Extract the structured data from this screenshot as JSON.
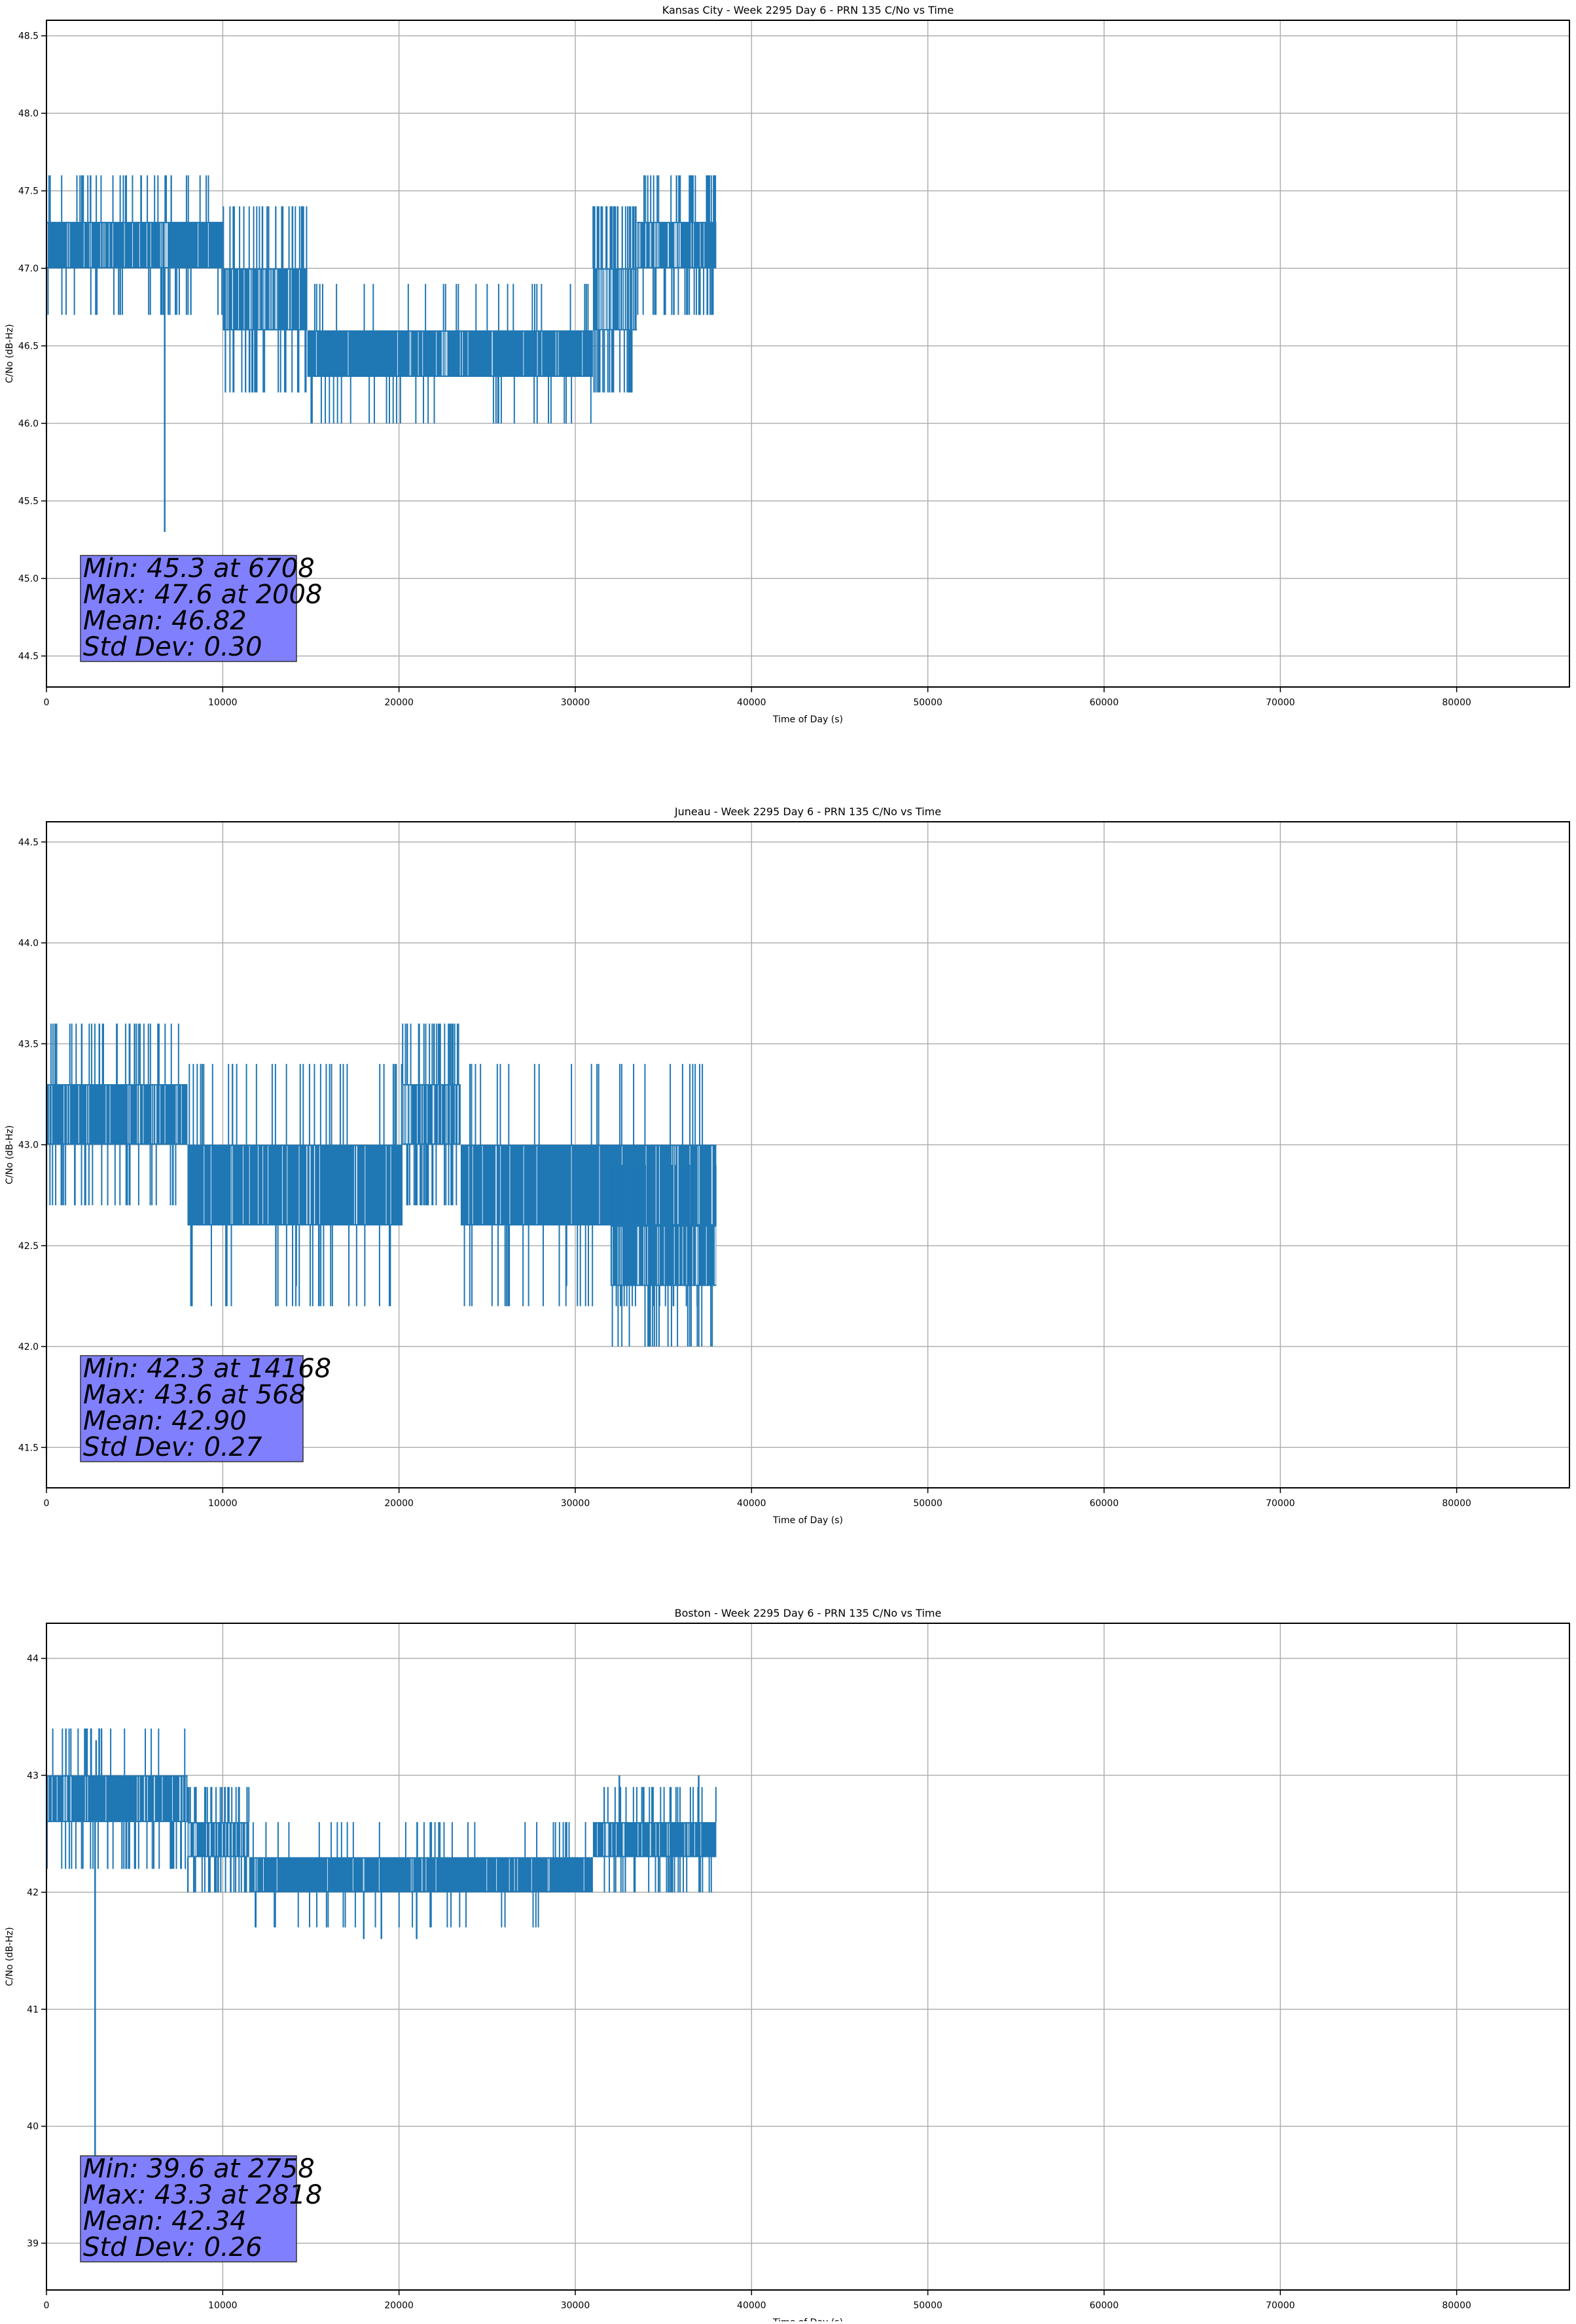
{
  "chart_data": [
    {
      "type": "line",
      "title": "Kansas City - Week 2295 Day 6 - PRN 135 C/No vs Time",
      "xlabel": "Time of Day (s)",
      "ylabel": "C/No (dB-Hz)",
      "xlim": [
        0,
        86400
      ],
      "ylim": [
        44.3,
        48.6
      ],
      "x_ticks": [
        0,
        10000,
        20000,
        30000,
        40000,
        50000,
        60000,
        70000,
        80000
      ],
      "x_tick_labels": [
        "0",
        "10000",
        "20000",
        "30000",
        "40000",
        "50000",
        "60000",
        "70000",
        "80000"
      ],
      "y_ticks": [
        44.5,
        45.0,
        45.5,
        46.0,
        46.5,
        47.0,
        47.5,
        48.0,
        48.5
      ],
      "y_tick_labels": [
        "44.5",
        "45.0",
        "45.5",
        "46.0",
        "46.5",
        "47.0",
        "47.5",
        "48.0",
        "48.5"
      ],
      "grid": true,
      "series_color": "#1f77b4",
      "data_end": 38000,
      "segments": [
        {
          "x0": 0,
          "x1": 10000,
          "y_low": 47.0,
          "y_high": 47.3
        },
        {
          "x0": 10000,
          "x1": 14800,
          "y_low": 46.6,
          "y_high": 47.0
        },
        {
          "x0": 14800,
          "x1": 31000,
          "y_low": 46.3,
          "y_high": 46.6
        },
        {
          "x0": 31000,
          "x1": 33500,
          "y_low": 46.6,
          "y_high": 47.0
        },
        {
          "x0": 33500,
          "x1": 38000,
          "y_low": 47.0,
          "y_high": 47.3
        }
      ],
      "spikes": [
        {
          "x": 2008,
          "y": 47.6
        },
        {
          "x": 2500,
          "y": 47.6
        },
        {
          "x": 6708,
          "y": 45.3
        },
        {
          "x": 36500,
          "y": 47.6
        },
        {
          "x": 37500,
          "y": 47.6
        }
      ],
      "stats": {
        "min_label": "Min: 45.3 at 6708",
        "max_label": "Max: 47.6 at 2008",
        "mean_label": "Mean: 46.82",
        "std_label": "Std Dev: 0.30"
      },
      "stats_box_color": "#8080ff"
    },
    {
      "type": "line",
      "title": "Juneau - Week 2295 Day 6 - PRN 135 C/No vs Time",
      "xlabel": "Time of Day (s)",
      "ylabel": "C/No (dB-Hz)",
      "xlim": [
        0,
        86400
      ],
      "ylim": [
        41.3,
        44.6
      ],
      "x_ticks": [
        0,
        10000,
        20000,
        30000,
        40000,
        50000,
        60000,
        70000,
        80000
      ],
      "x_tick_labels": [
        "0",
        "10000",
        "20000",
        "30000",
        "40000",
        "50000",
        "60000",
        "70000",
        "80000"
      ],
      "y_ticks": [
        41.5,
        42.0,
        42.5,
        43.0,
        43.5,
        44.0,
        44.5
      ],
      "y_tick_labels": [
        "41.5",
        "42.0",
        "42.5",
        "43.0",
        "43.5",
        "44.0",
        "44.5"
      ],
      "grid": true,
      "series_color": "#1f77b4",
      "data_end": 38000,
      "segments": [
        {
          "x0": 0,
          "x1": 8000,
          "y_low": 43.0,
          "y_high": 43.3
        },
        {
          "x0": 8000,
          "x1": 20200,
          "y_low": 42.6,
          "y_high": 43.0
        },
        {
          "x0": 20200,
          "x1": 23500,
          "y_low": 43.0,
          "y_high": 43.3
        },
        {
          "x0": 23500,
          "x1": 38000,
          "y_low": 42.6,
          "y_high": 43.0
        },
        {
          "x0": 32000,
          "x1": 38000,
          "y_low": 42.3,
          "y_high": 42.6
        }
      ],
      "spikes": [
        {
          "x": 568,
          "y": 43.6
        },
        {
          "x": 2000,
          "y": 43.6
        },
        {
          "x": 3000,
          "y": 43.6
        },
        {
          "x": 4000,
          "y": 43.6
        },
        {
          "x": 5000,
          "y": 43.6
        },
        {
          "x": 14168,
          "y": 42.3
        },
        {
          "x": 29500,
          "y": 42.3
        }
      ],
      "stats": {
        "min_label": "Min: 42.3 at 14168",
        "max_label": "Max: 43.6 at 568",
        "mean_label": "Mean: 42.90",
        "std_label": "Std Dev: 0.27"
      },
      "stats_box_color": "#8080ff"
    },
    {
      "type": "line",
      "title": "Boston - Week 2295 Day 6 - PRN 135 C/No vs Time",
      "xlabel": "Time of Day (s)",
      "ylabel": "C/No (dB-Hz)",
      "xlim": [
        0,
        86400
      ],
      "ylim": [
        38.6,
        44.3
      ],
      "x_ticks": [
        0,
        10000,
        20000,
        30000,
        40000,
        50000,
        60000,
        70000,
        80000
      ],
      "x_tick_labels": [
        "0",
        "10000",
        "20000",
        "30000",
        "40000",
        "50000",
        "60000",
        "70000",
        "80000"
      ],
      "y_ticks": [
        39,
        40,
        41,
        42,
        43,
        44
      ],
      "y_tick_labels": [
        "39",
        "40",
        "41",
        "42",
        "43",
        "44"
      ],
      "grid": true,
      "series_color": "#1f77b4",
      "data_end": 38000,
      "segments": [
        {
          "x0": 0,
          "x1": 8000,
          "y_low": 42.6,
          "y_high": 43.0
        },
        {
          "x0": 8000,
          "x1": 11500,
          "y_low": 42.3,
          "y_high": 42.6
        },
        {
          "x0": 11500,
          "x1": 31000,
          "y_low": 42.0,
          "y_high": 42.3
        },
        {
          "x0": 31000,
          "x1": 38000,
          "y_low": 42.3,
          "y_high": 42.6
        }
      ],
      "spikes": [
        {
          "x": 2758,
          "y": 39.6
        },
        {
          "x": 2818,
          "y": 43.3
        },
        {
          "x": 18000,
          "y": 41.6
        },
        {
          "x": 19000,
          "y": 41.6
        },
        {
          "x": 21000,
          "y": 41.6
        },
        {
          "x": 32500,
          "y": 43.0
        },
        {
          "x": 37000,
          "y": 43.0
        }
      ],
      "stats": {
        "min_label": "Min: 39.6 at 2758",
        "max_label": "Max: 43.3 at 2818",
        "mean_label": "Mean: 42.34",
        "std_label": "Std Dev: 0.26"
      },
      "stats_box_color": "#8080ff"
    }
  ]
}
